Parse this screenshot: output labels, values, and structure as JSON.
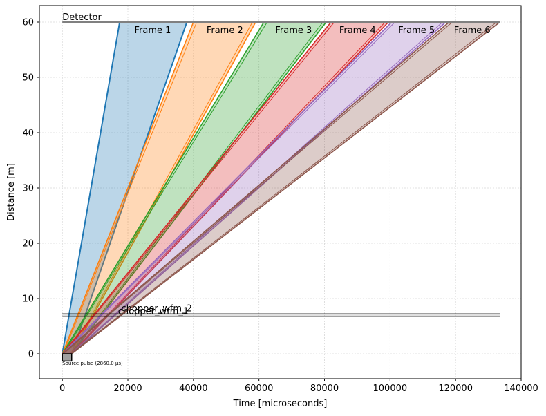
{
  "chart_data": {
    "type": "line",
    "xlabel": "Time [microseconds]",
    "ylabel": "Distance [m]",
    "xlim": [
      -7000,
      140000
    ],
    "ylim": [
      -4.5,
      63
    ],
    "xticks": [
      0,
      20000,
      40000,
      60000,
      80000,
      100000,
      120000,
      140000
    ],
    "xtick_labels": [
      "0",
      "20000",
      "40000",
      "60000",
      "80000",
      "100000",
      "120000",
      "140000"
    ],
    "yticks": [
      0,
      10,
      20,
      30,
      40,
      50,
      60
    ],
    "ytick_labels": [
      "0",
      "10",
      "20",
      "30",
      "40",
      "50",
      "60"
    ],
    "grid": true,
    "detector": {
      "label": "Detector",
      "distance": 60,
      "x": [
        0,
        133500
      ],
      "color": "#808080"
    },
    "choppers": [
      {
        "label": "chopper_wfm_2",
        "distance": 7.2,
        "x": [
          0,
          133500
        ]
      },
      {
        "label": "chopper_wfm_1",
        "distance": 6.8,
        "x": [
          0,
          133500
        ]
      }
    ],
    "source": {
      "label": "Source pulse (2860.0 µs)",
      "x": [
        0,
        2860
      ],
      "y": [
        -1.3,
        0
      ]
    },
    "frames": [
      {
        "name": "Frame 1",
        "color": "#1f77b4",
        "fill": [
          [
            0,
            0
          ],
          [
            2860,
            0
          ],
          [
            38000,
            60
          ],
          [
            17500,
            60
          ]
        ],
        "lines": [
          [
            [
              0,
              0
            ],
            [
              17500,
              60
            ]
          ],
          [
            [
              2860,
              0
            ],
            [
              38000,
              60
            ]
          ]
        ]
      },
      {
        "name": "Frame 2",
        "color": "#ff7f0e",
        "fill": [
          [
            0,
            0
          ],
          [
            2860,
            0
          ],
          [
            59000,
            60
          ],
          [
            40000,
            60
          ]
        ],
        "lines": [
          [
            [
              0,
              0
            ],
            [
              40000,
              60
            ]
          ],
          [
            [
              2860,
              0
            ],
            [
              59000,
              60
            ]
          ],
          [
            [
              300,
              0
            ],
            [
              41000,
              60
            ]
          ],
          [
            [
              2500,
              0
            ],
            [
              58000,
              60
            ]
          ]
        ]
      },
      {
        "name": "Frame 3",
        "color": "#2ca02c",
        "fill": [
          [
            0,
            0
          ],
          [
            2860,
            0
          ],
          [
            80500,
            60
          ],
          [
            61500,
            60
          ]
        ],
        "lines": [
          [
            [
              0,
              0
            ],
            [
              61500,
              60
            ]
          ],
          [
            [
              2860,
              0
            ],
            [
              80500,
              60
            ]
          ],
          [
            [
              300,
              0
            ],
            [
              62500,
              60
            ]
          ],
          [
            [
              2500,
              0
            ],
            [
              79500,
              60
            ]
          ]
        ]
      },
      {
        "name": "Frame 4",
        "color": "#d62728",
        "fill": [
          [
            0,
            0
          ],
          [
            2860,
            0
          ],
          [
            99500,
            60
          ],
          [
            82000,
            60
          ]
        ],
        "lines": [
          [
            [
              0,
              0
            ],
            [
              82000,
              60
            ]
          ],
          [
            [
              2860,
              0
            ],
            [
              99500,
              60
            ]
          ],
          [
            [
              300,
              0
            ],
            [
              83000,
              60
            ]
          ],
          [
            [
              2500,
              0
            ],
            [
              98500,
              60
            ]
          ]
        ]
      },
      {
        "name": "Frame 5",
        "color": "#9467bd",
        "fill": [
          [
            0,
            0
          ],
          [
            2860,
            0
          ],
          [
            117000,
            60
          ],
          [
            100500,
            60
          ]
        ],
        "lines": [
          [
            [
              0,
              0
            ],
            [
              100500,
              60
            ]
          ],
          [
            [
              2860,
              0
            ],
            [
              117000,
              60
            ]
          ],
          [
            [
              300,
              0
            ],
            [
              101500,
              60
            ]
          ],
          [
            [
              2500,
              0
            ],
            [
              116000,
              60
            ]
          ]
        ]
      },
      {
        "name": "Frame 6",
        "color": "#8c564b",
        "fill": [
          [
            0,
            0
          ],
          [
            2860,
            0
          ],
          [
            133500,
            60
          ],
          [
            118000,
            60
          ]
        ],
        "lines": [
          [
            [
              0,
              0
            ],
            [
              118000,
              60
            ]
          ],
          [
            [
              2860,
              0
            ],
            [
              133500,
              60
            ]
          ],
          [
            [
              300,
              0
            ],
            [
              119000,
              60
            ]
          ],
          [
            [
              2500,
              0
            ],
            [
              132500,
              60
            ]
          ]
        ]
      }
    ],
    "frame_label_positions": [
      {
        "name": "Frame 1",
        "x": 22000,
        "y": 58.5
      },
      {
        "name": "Frame 2",
        "x": 44000,
        "y": 58.5
      },
      {
        "name": "Frame 3",
        "x": 65000,
        "y": 58.5
      },
      {
        "name": "Frame 4",
        "x": 84500,
        "y": 58.5
      },
      {
        "name": "Frame 5",
        "x": 102500,
        "y": 58.5
      },
      {
        "name": "Frame 6",
        "x": 119500,
        "y": 58.5
      }
    ]
  }
}
